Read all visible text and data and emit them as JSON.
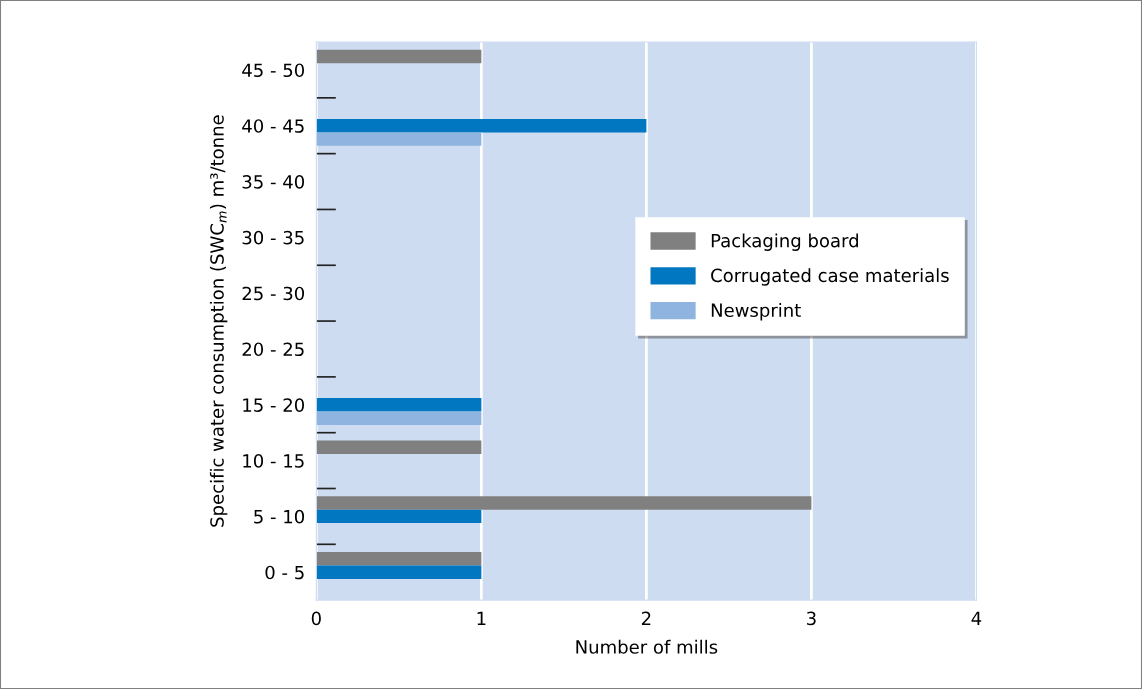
{
  "chart_data": {
    "type": "bar",
    "orientation": "horizontal",
    "xlabel": "Number of mills",
    "ylabel": "Specific water consumption (SWC$_{m}$) m³/tonne",
    "categories": [
      "45 - 50",
      "40 - 45",
      "35 - 40",
      "30 - 35",
      "25 - 30",
      "20 - 25",
      "15 - 20",
      "10 - 15",
      "5 - 10",
      "0 - 5"
    ],
    "series": [
      {
        "name": "Packaging board",
        "color": "#808080",
        "values": [
          1,
          0,
          0,
          0,
          0,
          0,
          0,
          1,
          3,
          1
        ]
      },
      {
        "name": "Corrugated case materials",
        "color": "#0077c0",
        "values": [
          0,
          2,
          0,
          0,
          0,
          0,
          1,
          0,
          1,
          1
        ]
      },
      {
        "name": "Newsprint",
        "color": "#8fb4e0",
        "values": [
          0,
          1,
          0,
          0,
          0,
          0,
          1,
          0,
          0,
          0
        ]
      }
    ],
    "xlim": [
      0,
      4
    ],
    "xticks": [
      0,
      1,
      2,
      3,
      4
    ],
    "grid": "x",
    "legend": "center right"
  }
}
